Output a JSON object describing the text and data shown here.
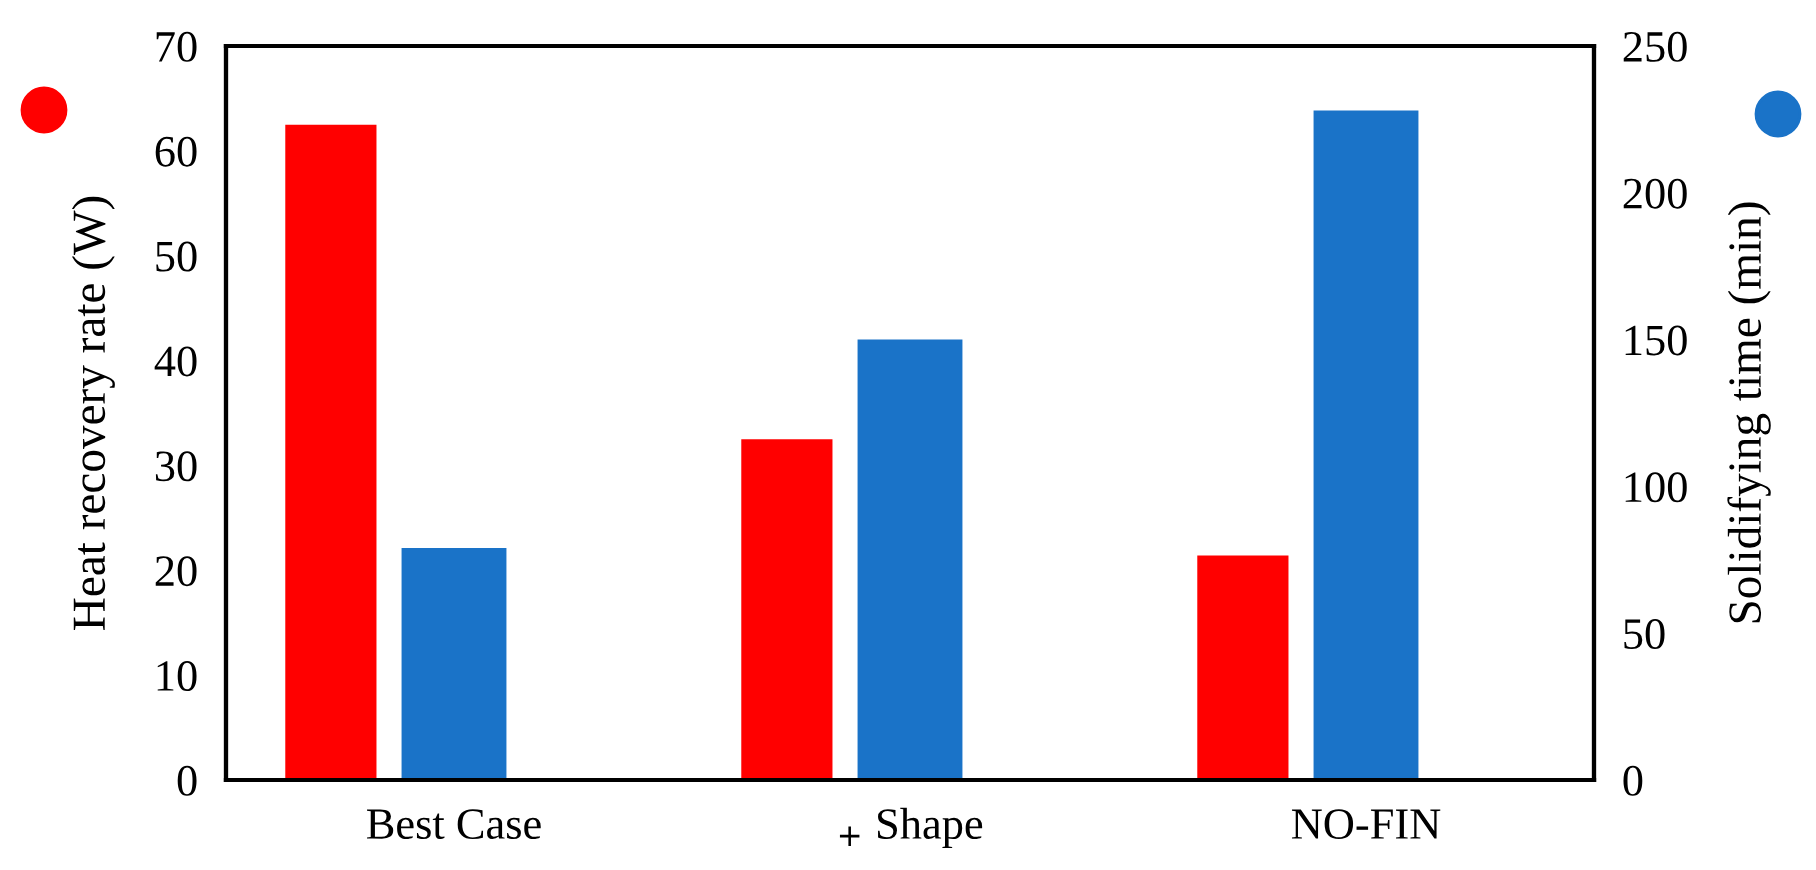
{
  "chart_data": {
    "type": "bar",
    "categories": [
      "Best Case",
      "$_{+}$ Shape",
      "NO-FIN"
    ],
    "ylabel": "Heat recovery rate (W)",
    "y2label": "Solidifying time (min)",
    "series": [
      {
        "color": "#ff0000",
        "values": [
          62.5,
          32.5,
          21.4
        ]
      },
      {
        "color": "#1a73c8",
        "values": [
          79,
          150,
          228
        ],
        "axis": "y2"
      }
    ],
    "ylim": [
      0,
      70
    ],
    "yticks": [
      0,
      10,
      20,
      30,
      40,
      50,
      60,
      70
    ],
    "y2lim": [
      0,
      250
    ],
    "y2ticks": [
      0,
      50,
      100,
      150,
      200,
      250
    ],
    "grid": false,
    "legend": false
  }
}
